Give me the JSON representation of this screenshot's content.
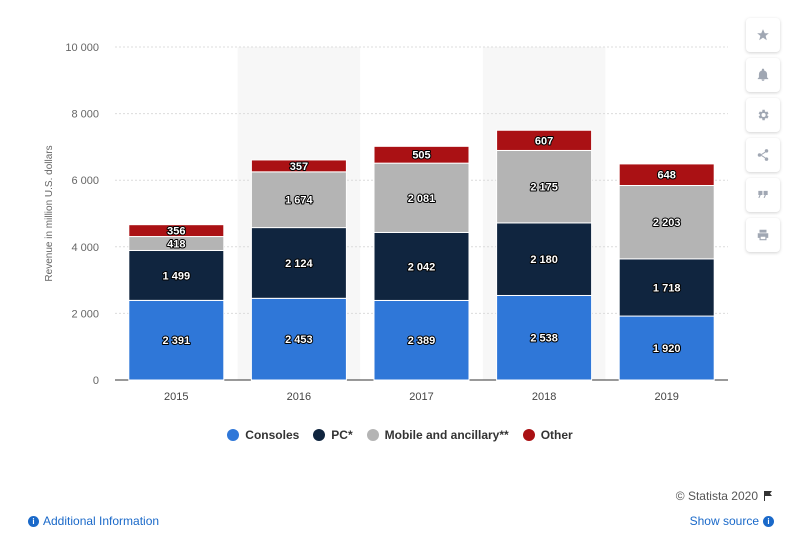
{
  "chart_data": {
    "type": "bar",
    "stacked": true,
    "categories": [
      "2015",
      "2016",
      "2017",
      "2018",
      "2019"
    ],
    "series": [
      {
        "name": "Consoles",
        "color": "#2f77d8",
        "values": [
          2391,
          2453,
          2389,
          2538,
          1920
        ],
        "labels": [
          "2 391",
          "2 453",
          "2 389",
          "2 538",
          "1 920"
        ]
      },
      {
        "name": "PC*",
        "color": "#10253f",
        "values": [
          1499,
          2124,
          2042,
          2180,
          1718
        ],
        "labels": [
          "1 499",
          "2 124",
          "2 042",
          "2 180",
          "1 718"
        ]
      },
      {
        "name": "Mobile and ancillary**",
        "color": "#b4b4b4",
        "values": [
          418,
          1674,
          2081,
          2175,
          2203
        ],
        "labels": [
          "418",
          "1 674",
          "2 081",
          "2 175",
          "2 203"
        ]
      },
      {
        "name": "Other",
        "color": "#aa1114",
        "values": [
          356,
          357,
          505,
          607,
          648
        ],
        "labels": [
          "356",
          "357",
          "505",
          "607",
          "648"
        ]
      }
    ],
    "ylabel": "Revenue in million U.S. dollars",
    "ylim": [
      0,
      10000
    ],
    "yticks": [
      0,
      2000,
      4000,
      6000,
      8000,
      10000
    ],
    "ytick_labels": [
      "0",
      "2 000",
      "4 000",
      "6 000",
      "8 000",
      "10 000"
    ],
    "grid": true,
    "legend": "bottom"
  },
  "toolbar": {
    "icons": [
      "star-icon",
      "bell-icon",
      "gear-icon",
      "share-icon",
      "quote-icon",
      "print-icon"
    ]
  },
  "footer": {
    "credit": "© Statista 2020",
    "additional_info": "Additional Information",
    "show_source": "Show source"
  }
}
